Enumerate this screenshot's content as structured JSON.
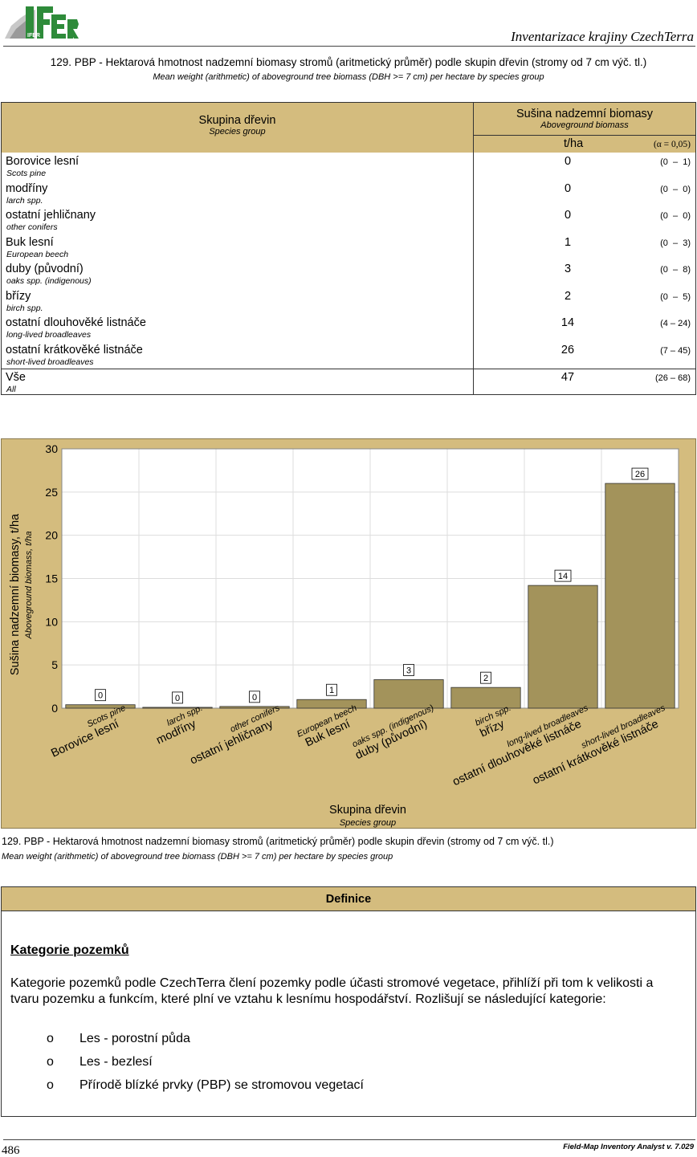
{
  "header": {
    "logo_text": "IFER",
    "right_title": "Inventarizace krajiny CzechTerra"
  },
  "title": {
    "main": "129. PBP - Hektarová hmotnost nadzemní biomasy stromů (aritmetický průměr) podle skupin dřevin (stromy od 7 cm výč. tl.)",
    "sub": "Mean weight (arithmetic) of aboveground tree biomass (DBH >= 7 cm) per hectare by species group"
  },
  "table": {
    "col_group_cz": "Skupina dřevin",
    "col_group_en": "Species group",
    "col_bio_cz": "Sušina nadzemní biomasy",
    "col_bio_en": "Aboveground biomass",
    "unit": "t/ha",
    "alpha": "(α = 0,05)",
    "rows": [
      {
        "cz": "Borovice lesní",
        "en": "Scots pine",
        "value": "0",
        "ci": "(0  –  1)"
      },
      {
        "cz": "modříny",
        "en": "larch spp.",
        "value": "0",
        "ci": "(0  –  0)"
      },
      {
        "cz": "ostatní jehličnany",
        "en": "other conifers",
        "value": "0",
        "ci": "(0  –  0)"
      },
      {
        "cz": "Buk lesní",
        "en": "European beech",
        "value": "1",
        "ci": "(0  –  3)"
      },
      {
        "cz": "duby (původní)",
        "en": "oaks spp. (indigenous)",
        "value": "3",
        "ci": "(0  –  8)"
      },
      {
        "cz": "břízy",
        "en": "birch spp.",
        "value": "2",
        "ci": "(0  –  5)"
      },
      {
        "cz": "ostatní dlouhověké listnáče",
        "en": "long-lived broadleaves",
        "value": "14",
        "ci": "(4 – 24)"
      },
      {
        "cz": "ostatní krátkověké listnáče",
        "en": "short-lived broadleaves",
        "value": "26",
        "ci": "(7 – 45)"
      }
    ],
    "total": {
      "cz": "Vše",
      "en": "All",
      "value": "47",
      "ci": "(26 – 68)"
    }
  },
  "chart_data": {
    "type": "bar",
    "ylabel": "Sušina nadzemní biomasy, t/ha",
    "ylabel_en": "Aboveground biomass, t/ha",
    "xlabel": "Skupina dřevin",
    "xlabel_en": "Species group",
    "ylim": [
      0,
      30
    ],
    "yticks": [
      0,
      5,
      10,
      15,
      20,
      25,
      30
    ],
    "categories": [
      "Borovice lesní",
      "modříny",
      "ostatní jehličnany",
      "Buk lesní",
      "duby (původní)",
      "břízy",
      "ostatní dlouhověké listnáče",
      "ostatní krátkověké listnáče"
    ],
    "categories_en": [
      "Scots pine",
      "larch spp.",
      "other conifers",
      "European beech",
      "oaks spp. (indigenous)",
      "birch spp.",
      "long-lived broadleaves",
      "short-lived broadleaves"
    ],
    "values": [
      0.4,
      0.1,
      0.2,
      1.0,
      3.3,
      2.4,
      14.2,
      26.0
    ],
    "labels": [
      "0",
      "0",
      "0",
      "1",
      "3",
      "2",
      "14",
      "26"
    ],
    "bar_color": "#a3935b",
    "panel_color": "#d4bc7e"
  },
  "caption": {
    "main": "129. PBP - Hektarová hmotnost nadzemní biomasy stromů (aritmetický průměr) podle skupin dřevin (stromy od 7 cm výč. tl.)",
    "sub": "Mean weight (arithmetic) of aboveground tree biomass (DBH >= 7 cm) per hectare by species group"
  },
  "definition": {
    "header": "Definice",
    "heading": "Kategorie pozemků",
    "paragraph": "Kategorie pozemků podle CzechTerra člení pozemky podle účasti stromové vegetace, přihlíží při tom k velikosti a tvaru pozemku a funkcím, které plní ve vztahu k lesnímu hospodářství. Rozlišují se následující kategorie:",
    "bullet": "o",
    "items": [
      "Les - porostní půda",
      "Les - bezlesí",
      "Přírodě blízké prvky (PBP) se stromovou vegetací"
    ]
  },
  "footer": {
    "page": "486",
    "right": "Field-Map Inventory Analyst v. 7.029"
  }
}
